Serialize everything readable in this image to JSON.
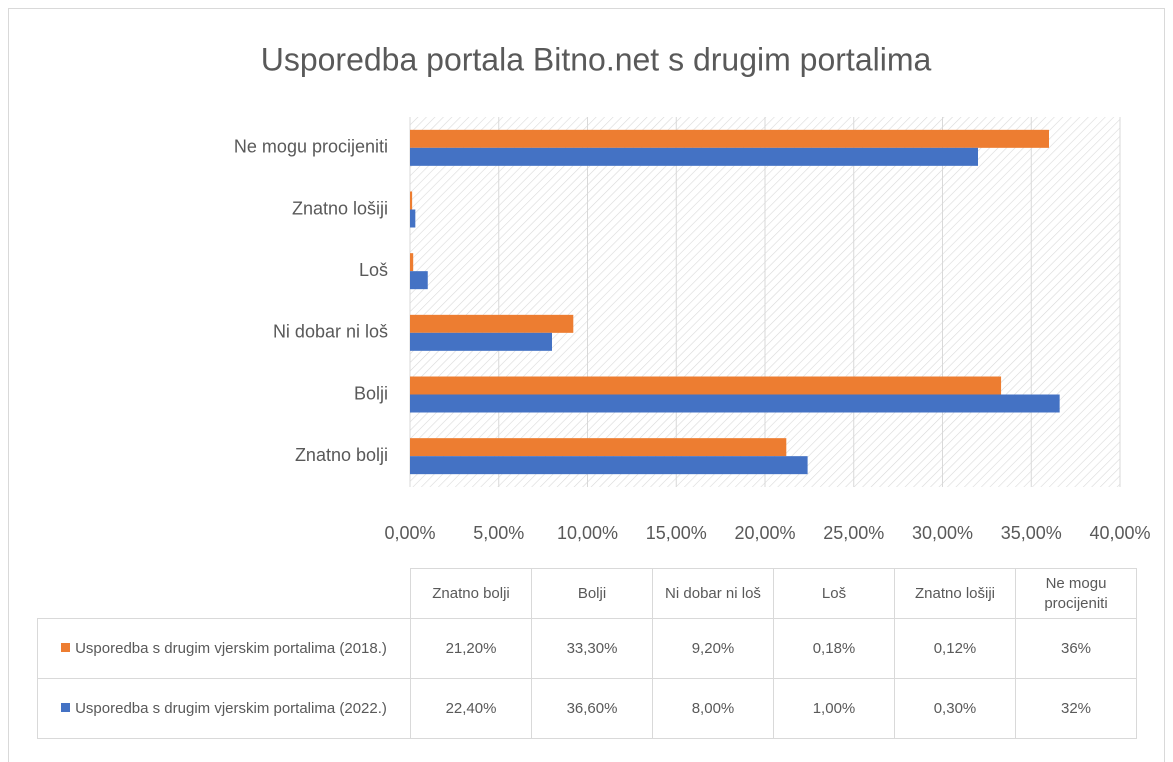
{
  "chart_data": {
    "type": "bar",
    "orientation": "horizontal",
    "title": "Usporedba portala Bitno.net s drugim portalima",
    "categories": [
      "Znatno bolji",
      "Bolji",
      "Ni dobar ni loš",
      "Loš",
      "Znatno lošiji",
      "Ne mogu procijeniti"
    ],
    "series": [
      {
        "name": "Usporedba s drugim vjerskim portalima (2018.)",
        "color": "#ed7d31",
        "values": [
          21.2,
          33.3,
          9.2,
          0.18,
          0.12,
          36
        ],
        "value_labels": [
          "21,20%",
          "33,30%",
          "9,20%",
          "0,18%",
          "0,12%",
          "36%"
        ]
      },
      {
        "name": "Usporedba s drugim vjerskim portalima (2022.)",
        "color": "#4472c4",
        "values": [
          22.4,
          36.6,
          8.0,
          1.0,
          0.3,
          32
        ],
        "value_labels": [
          "22,40%",
          "36,60%",
          "8,00%",
          "1,00%",
          "0,30%",
          "32%"
        ]
      }
    ],
    "xlim": [
      0,
      40
    ],
    "xticks": [
      {
        "value": 0,
        "label": "0,00%"
      },
      {
        "value": 5,
        "label": "5,00%"
      },
      {
        "value": 10,
        "label": "10,00%"
      },
      {
        "value": 15,
        "label": "15,00%"
      },
      {
        "value": 20,
        "label": "20,00%"
      },
      {
        "value": 25,
        "label": "25,00%"
      },
      {
        "value": 30,
        "label": "30,00%"
      },
      {
        "value": 35,
        "label": "35,00%"
      },
      {
        "value": 40,
        "label": "40,00%"
      }
    ],
    "grid": true
  }
}
